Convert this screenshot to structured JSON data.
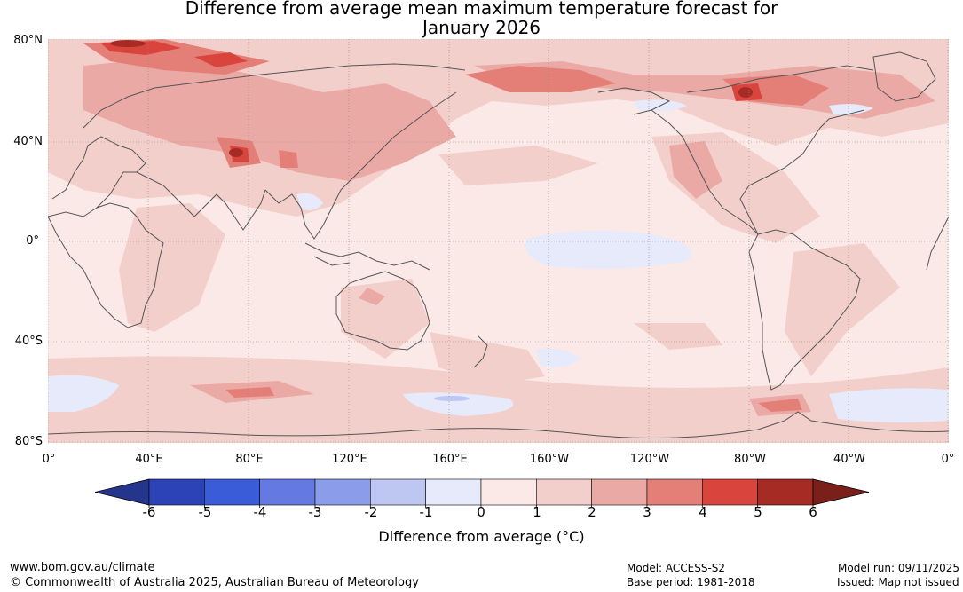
{
  "title": {
    "line1": "Difference from average mean maximum temperature forecast for",
    "line2": "January 2026"
  },
  "map": {
    "lat_labels": [
      "80°N",
      "40°N",
      "0°",
      "40°S",
      "80°S"
    ],
    "lon_labels": [
      "0°",
      "40°E",
      "80°E",
      "120°E",
      "160°E",
      "160°W",
      "120°W",
      "80°W",
      "40°W",
      "0°"
    ]
  },
  "colorbar": {
    "ticks": [
      "-6",
      "-5",
      "-4",
      "-3",
      "-2",
      "-1",
      "0",
      "1",
      "2",
      "3",
      "4",
      "5",
      "6"
    ],
    "colors": [
      "#25358c",
      "#2b43b6",
      "#3b5cd9",
      "#6479e2",
      "#8b9cea",
      "#bdc7f2",
      "#e6eafa",
      "#fbe9e7",
      "#f3cfcb",
      "#eba9a5",
      "#e47f78",
      "#d9453c",
      "#a52b24",
      "#7a1f1a"
    ],
    "label": "Difference from average (°C)"
  },
  "footer": {
    "website": "www.bom.gov.au/climate",
    "copyright": "© Commonwealth of Australia 2025, Australian Bureau of Meteorology",
    "model": "Model: ACCESS-S2",
    "base_period": "Base period: 1981-2018",
    "model_run": "Model run: 09/11/2025",
    "issued": "Issued: Map not issued"
  }
}
